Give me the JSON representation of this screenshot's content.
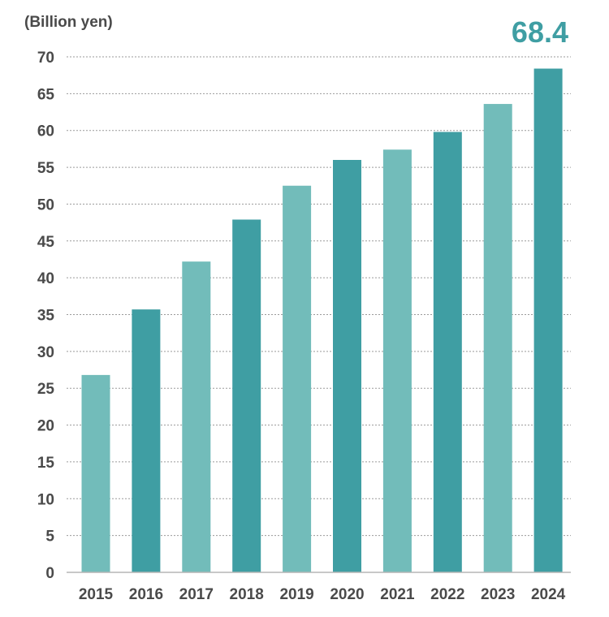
{
  "chart_data": {
    "type": "bar",
    "unit_label": "(Billion yen)",
    "highlight_label": "68.4",
    "categories": [
      "2015",
      "2016",
      "2017",
      "2018",
      "2019",
      "2020",
      "2021",
      "2022",
      "2023",
      "2024"
    ],
    "values": [
      26.8,
      35.7,
      42.2,
      47.9,
      52.5,
      56.0,
      57.4,
      59.8,
      63.6,
      68.4
    ],
    "ylim": [
      0,
      70
    ],
    "yticks": [
      0,
      5,
      10,
      15,
      20,
      25,
      30,
      35,
      40,
      45,
      50,
      55,
      60,
      65,
      70
    ],
    "grid": true,
    "bar_colors": [
      "#72bcba",
      "#3f9ea3",
      "#72bcba",
      "#3f9ea3",
      "#72bcba",
      "#3f9ea3",
      "#72bcba",
      "#3f9ea3",
      "#72bcba",
      "#3f9ea3"
    ],
    "callout_color": "#3f9ea3"
  }
}
